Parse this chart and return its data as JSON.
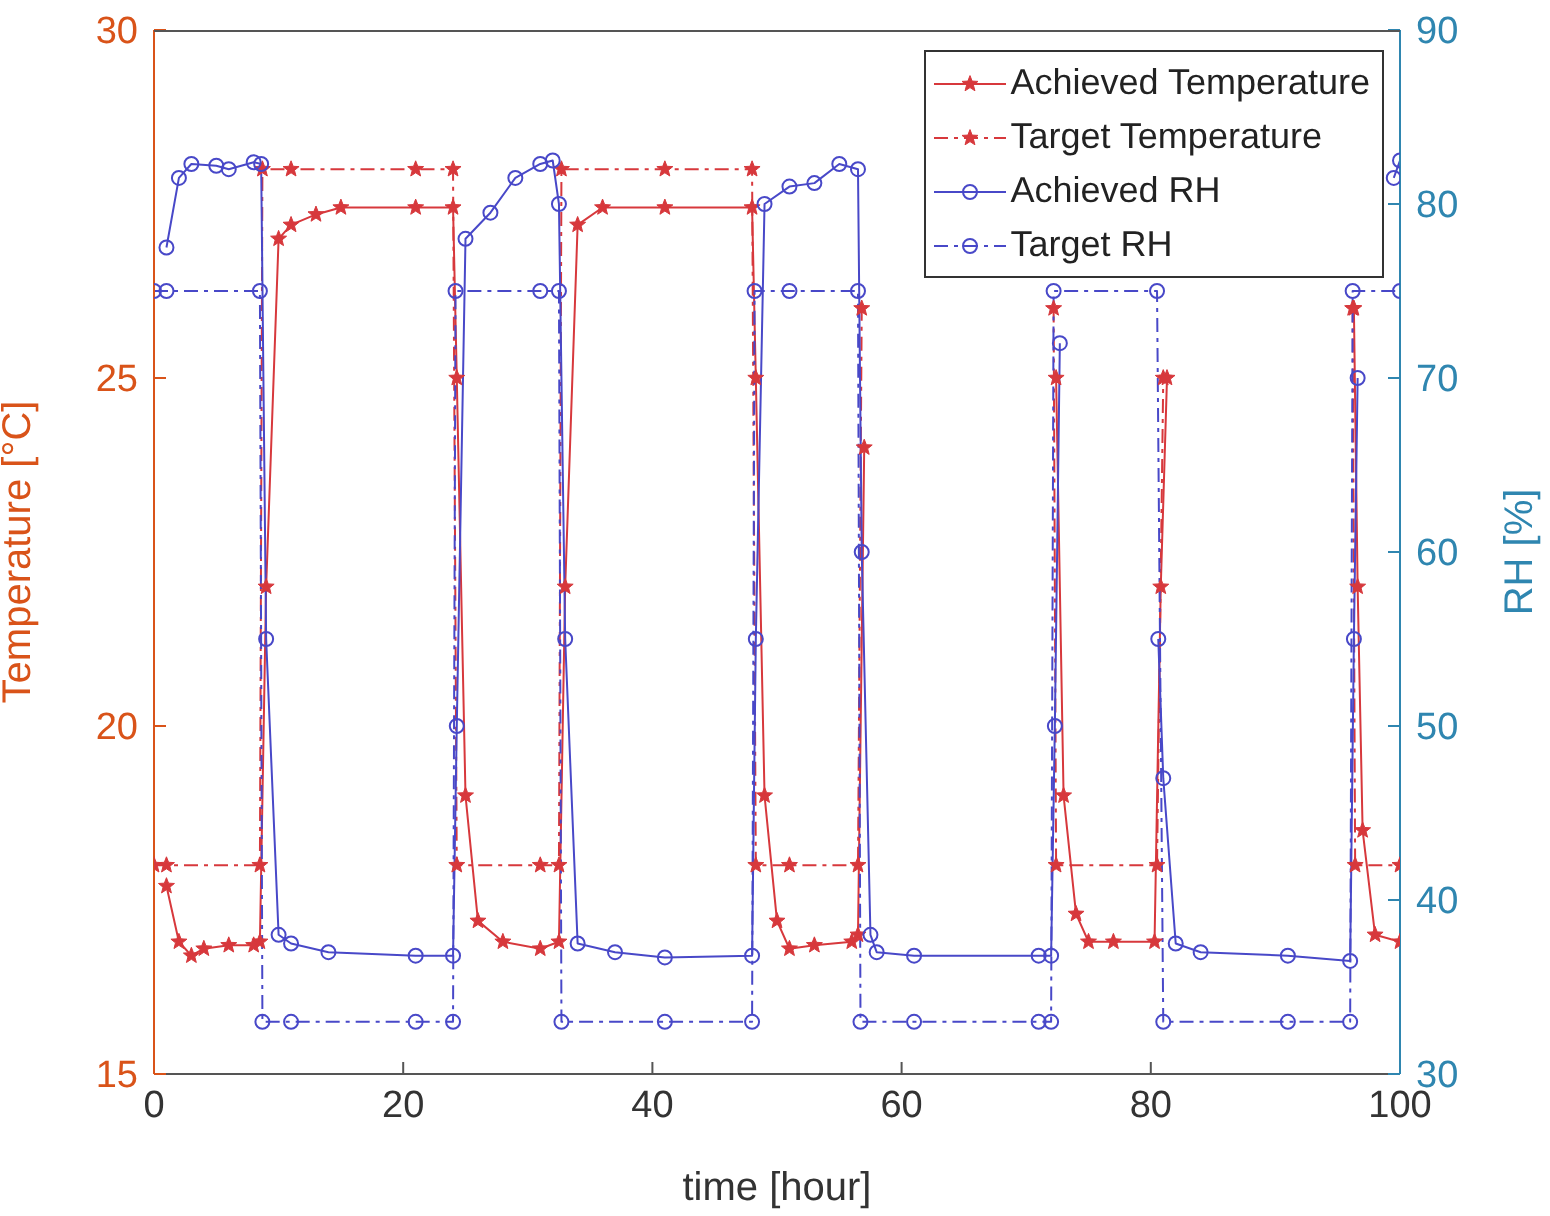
{
  "chart_data": {
    "type": "line",
    "xlabel": "time [hour]",
    "ylabel": "Temperature [°C]",
    "y2label": "RH [%]",
    "xlim": [
      0,
      100
    ],
    "xticks": [
      0,
      20,
      40,
      60,
      80,
      100
    ],
    "ylim": [
      15,
      30
    ],
    "yticks": [
      15,
      20,
      25,
      30
    ],
    "y2lim": [
      30,
      90
    ],
    "y2ticks": [
      30,
      40,
      50,
      60,
      70,
      80,
      90
    ],
    "grid": false,
    "legend": "top right",
    "series": [
      {
        "name": "Achieved Temperature",
        "color": "#d7383c",
        "marker": "star",
        "line_style": "solid",
        "x": [
          1,
          2,
          3,
          4,
          6,
          8,
          8.5,
          9,
          10,
          11,
          13,
          15,
          21,
          24,
          24.3,
          25,
          26,
          28,
          31,
          32.5,
          33,
          34,
          36,
          41,
          48,
          48.3,
          49,
          50,
          51,
          53,
          56,
          56.5,
          57,
          65,
          72.4,
          73,
          74,
          75,
          77,
          80.3,
          80.8,
          81.3,
          88,
          96.3,
          96.6,
          97,
          98,
          100
        ],
        "values": [
          17.7,
          16.9,
          16.7,
          16.8,
          16.85,
          16.85,
          16.9,
          22,
          27,
          27.2,
          27.35,
          27.45,
          27.45,
          27.45,
          25,
          19,
          17.2,
          16.9,
          16.8,
          16.9,
          22,
          27.2,
          27.45,
          27.45,
          27.45,
          25,
          19,
          17.2,
          16.8,
          16.85,
          16.9,
          17,
          24,
          null,
          25,
          19,
          17.3,
          16.9,
          16.9,
          16.9,
          22,
          25,
          null,
          26,
          22,
          18.5,
          17,
          16.9
        ]
      },
      {
        "name": "Target Temperature",
        "color": "#d7383c",
        "marker": "star",
        "line_style": "dashed",
        "x": [
          0,
          1,
          8.5,
          8.7,
          11,
          21,
          24,
          24.3,
          31,
          32.5,
          32.7,
          41,
          48,
          48.3,
          51,
          56.5,
          56.8,
          65,
          72.2,
          72.4,
          80.5,
          81,
          88,
          96.2,
          96.4,
          100
        ],
        "values": [
          18,
          18,
          18,
          28,
          28,
          28,
          28,
          18,
          18,
          18,
          28,
          28,
          28,
          18,
          18,
          18,
          26,
          null,
          26,
          18,
          18,
          25,
          null,
          26,
          18,
          18
        ]
      },
      {
        "name": "Achieved RH",
        "color": "#4848c8",
        "marker": "circle",
        "line_style": "solid",
        "axis": "y2",
        "x": [
          1,
          2,
          3,
          5,
          6,
          8,
          8.6,
          9,
          10,
          11,
          14,
          21,
          24,
          24.3,
          25,
          27,
          29,
          31,
          32,
          32.5,
          33,
          34,
          37,
          41,
          48,
          48.3,
          49,
          51,
          53,
          55,
          56.5,
          56.8,
          57.5,
          58,
          61,
          71,
          72,
          72.3,
          72.7,
          76,
          80.6,
          81,
          82,
          84,
          91,
          96,
          96.3,
          96.6,
          98,
          99.5,
          100
        ],
        "values": [
          77.5,
          81.5,
          82.3,
          82.2,
          82,
          82.4,
          82.3,
          55,
          38,
          37.5,
          37,
          36.8,
          36.8,
          50,
          78,
          79.5,
          81.5,
          82.3,
          82.5,
          80,
          55,
          37.5,
          37,
          36.7,
          36.8,
          55,
          80,
          81,
          81.2,
          82.3,
          82,
          60,
          38,
          37,
          36.8,
          36.8,
          36.8,
          50,
          72,
          null,
          55,
          47,
          37.5,
          37,
          36.8,
          36.5,
          55,
          70,
          null,
          81.5,
          82.5
        ]
      },
      {
        "name": "Target RH",
        "color": "#4848c8",
        "marker": "circle",
        "line_style": "dashed",
        "axis": "y2",
        "x": [
          0,
          1,
          8.5,
          8.7,
          11,
          21,
          24,
          24.2,
          31,
          32.5,
          32.7,
          41,
          48,
          48.2,
          51,
          56.5,
          56.7,
          61,
          71,
          72,
          72.2,
          80.5,
          81,
          91,
          96,
          96.2,
          100
        ],
        "values": [
          75,
          75,
          75,
          33,
          33,
          33,
          33,
          75,
          75,
          75,
          33,
          33,
          33,
          75,
          75,
          75,
          33,
          33,
          33,
          33,
          75,
          75,
          33,
          33,
          33,
          75,
          75
        ]
      }
    ]
  }
}
